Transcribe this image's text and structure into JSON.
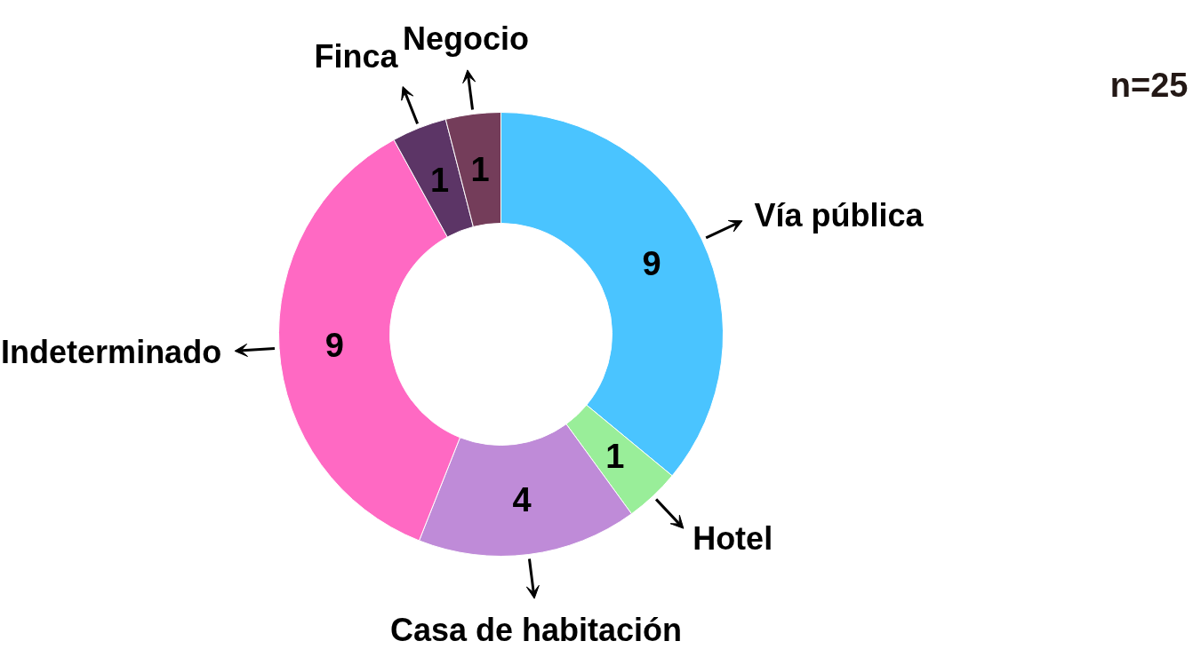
{
  "chart_data": {
    "type": "donut",
    "categories": [
      "Vía pública",
      "Hotel",
      "Casa de habitación",
      "Indeterminado",
      "Finca",
      "Negocio"
    ],
    "values": [
      9,
      1,
      4,
      9,
      1,
      1
    ],
    "colors": [
      "#4ac4ff",
      "#99ee99",
      "#bf8bd8",
      "#ff69c3",
      "#5c3566",
      "#743d5a"
    ],
    "data_labels": true,
    "annotations": [
      "n=25"
    ]
  }
}
